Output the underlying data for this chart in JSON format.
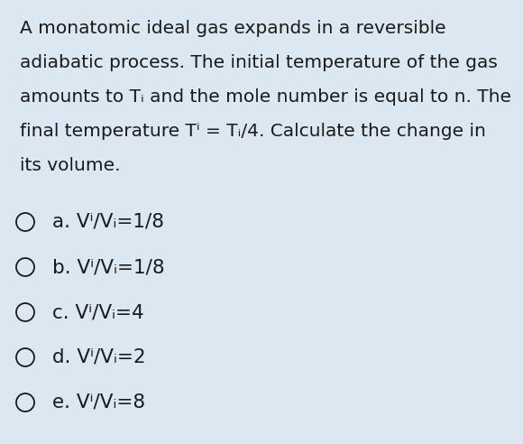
{
  "background_color": "#dce8f1",
  "text_color": "#1a1a1a",
  "paragraph_lines": [
    "A monatomic ideal gas expands in a reversible",
    "adiabatic process. The initial temperature of the gas",
    "amounts to Tᵢ and the mole number is equal to n. The",
    "final temperature Tⁱ = Tᵢ/4. Calculate the change in",
    "its volume."
  ],
  "options_text": [
    "a. Vⁱ/Vᵢ=1/8",
    "b. Vⁱ/Vᵢ=1/8",
    "c. Vⁱ/Vᵢ=4",
    "d. Vⁱ/Vᵢ=2",
    "e. Vⁱ/Vᵢ=8"
  ],
  "font_size_paragraph": 14.5,
  "font_size_options": 15.5,
  "fig_width": 5.8,
  "fig_height": 4.92,
  "dpi": 100
}
